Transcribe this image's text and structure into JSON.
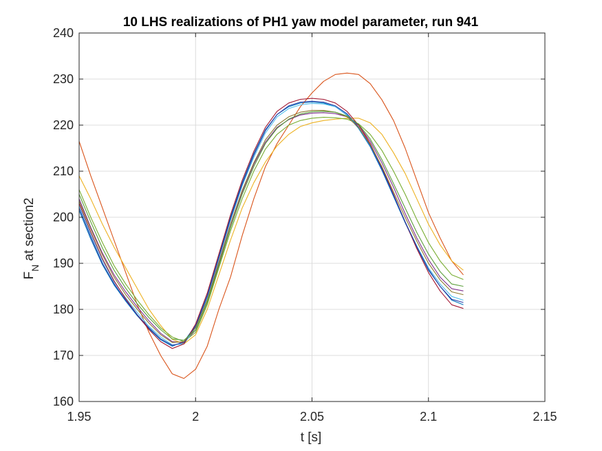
{
  "chart_data": {
    "type": "line",
    "title": "10 LHS realizations of PH1 yaw model parameter, run 941",
    "xlabel": "t [s]",
    "ylabel_main": "F",
    "ylabel_sub": "N",
    "ylabel_rest": " at section2",
    "xlim": [
      1.95,
      2.15
    ],
    "ylim": [
      160,
      240
    ],
    "xticks": [
      1.95,
      2.0,
      2.05,
      2.1,
      2.15
    ],
    "xtick_labels": [
      "1.95",
      "2",
      "2.05",
      "2.1",
      "2.15"
    ],
    "yticks": [
      160,
      170,
      180,
      190,
      200,
      210,
      220,
      230,
      240
    ],
    "ytick_labels": [
      "160",
      "170",
      "180",
      "190",
      "200",
      "210",
      "220",
      "230",
      "240"
    ],
    "grid": true,
    "legend": "none",
    "x": [
      1.95,
      1.955,
      1.96,
      1.965,
      1.97,
      1.975,
      1.98,
      1.985,
      1.99,
      1.995,
      2.0,
      2.005,
      2.01,
      2.015,
      2.02,
      2.025,
      2.03,
      2.035,
      2.04,
      2.045,
      2.05,
      2.055,
      2.06,
      2.065,
      2.07,
      2.075,
      2.08,
      2.085,
      2.09,
      2.095,
      2.1,
      2.105,
      2.11,
      2.115
    ],
    "series": [
      {
        "color": "#0072bd",
        "values": [
          201.5,
          195.3,
          189.7,
          185.3,
          181.8,
          178.6,
          175.8,
          173.4,
          172.0,
          173.0,
          176.5,
          183.0,
          191.5,
          200.0,
          207.5,
          213.8,
          219.0,
          222.3,
          224.0,
          224.8,
          225.0,
          224.8,
          224.0,
          222.2,
          219.3,
          215.3,
          210.2,
          204.5,
          198.8,
          193.5,
          188.5,
          185.0,
          182.0,
          181.0
        ]
      },
      {
        "color": "#d95319",
        "values": [
          216.5,
          209.0,
          202.0,
          195.0,
          188.0,
          181.0,
          175.0,
          170.0,
          166.0,
          165.0,
          167.0,
          172.0,
          180.0,
          187.0,
          196.0,
          204.0,
          211.0,
          216.0,
          220.0,
          224.0,
          227.0,
          229.5,
          231.0,
          231.3,
          231.0,
          229.0,
          225.5,
          221.0,
          215.0,
          208.0,
          201.0,
          195.5,
          190.5,
          187.5
        ]
      },
      {
        "color": "#edb120",
        "values": [
          209.0,
          204.0,
          198.5,
          193.5,
          189.0,
          184.5,
          180.0,
          176.5,
          173.5,
          172.5,
          174.5,
          180.0,
          187.5,
          195.0,
          202.0,
          207.5,
          212.0,
          215.5,
          218.0,
          219.7,
          220.5,
          221.0,
          221.3,
          221.5,
          221.5,
          220.5,
          218.0,
          214.0,
          209.5,
          204.0,
          198.5,
          194.0,
          190.5,
          188.5
        ]
      },
      {
        "color": "#7e2f8e",
        "values": [
          204.0,
          197.8,
          192.2,
          187.5,
          183.8,
          180.5,
          177.5,
          174.8,
          173.0,
          172.8,
          175.5,
          181.5,
          190.0,
          198.3,
          205.5,
          211.5,
          216.3,
          219.5,
          221.2,
          222.2,
          222.6,
          222.7,
          222.5,
          221.8,
          220.0,
          216.5,
          211.8,
          206.5,
          200.8,
          195.5,
          190.8,
          187.0,
          184.5,
          184.0
        ]
      },
      {
        "color": "#77ac30",
        "values": [
          206.0,
          200.0,
          194.5,
          189.5,
          185.5,
          182.0,
          178.8,
          176.0,
          174.0,
          173.0,
          175.0,
          181.0,
          189.0,
          197.0,
          204.0,
          210.0,
          214.8,
          218.0,
          220.0,
          221.0,
          221.5,
          221.7,
          221.6,
          221.3,
          220.3,
          218.0,
          214.5,
          210.0,
          205.0,
          199.5,
          194.5,
          190.5,
          187.5,
          186.5
        ]
      },
      {
        "color": "#4dbeee",
        "values": [
          202.5,
          196.3,
          190.6,
          186.0,
          182.5,
          179.3,
          176.3,
          174.0,
          172.3,
          172.5,
          176.0,
          182.5,
          191.0,
          199.3,
          206.8,
          213.0,
          218.3,
          221.8,
          223.6,
          224.4,
          224.7,
          224.6,
          224.0,
          222.3,
          219.5,
          215.5,
          210.5,
          204.8,
          199.0,
          193.8,
          189.0,
          185.5,
          182.8,
          182.0
        ]
      },
      {
        "color": "#a2142f",
        "values": [
          203.0,
          196.8,
          191.0,
          186.2,
          182.3,
          178.8,
          175.6,
          173.0,
          171.5,
          172.5,
          176.8,
          183.5,
          192.0,
          200.5,
          208.0,
          214.3,
          219.5,
          223.0,
          224.8,
          225.6,
          225.8,
          225.6,
          224.8,
          223.0,
          220.0,
          216.0,
          210.8,
          205.0,
          199.0,
          193.2,
          188.0,
          184.0,
          181.0,
          180.2
        ]
      },
      {
        "color": "#2a3ea8",
        "values": [
          202.0,
          195.8,
          190.0,
          185.6,
          182.0,
          178.8,
          176.0,
          173.6,
          172.2,
          172.8,
          176.3,
          182.8,
          191.2,
          199.6,
          207.2,
          213.5,
          218.8,
          222.3,
          224.2,
          225.0,
          225.2,
          225.0,
          224.2,
          222.5,
          219.6,
          215.6,
          210.5,
          204.8,
          199.0,
          193.6,
          188.7,
          185.0,
          182.2,
          181.5
        ]
      },
      {
        "color": "#8c7a30",
        "values": [
          203.5,
          197.5,
          191.8,
          187.0,
          183.2,
          180.0,
          177.0,
          174.5,
          172.8,
          173.0,
          176.0,
          182.0,
          190.3,
          198.5,
          205.8,
          211.8,
          216.8,
          220.0,
          221.8,
          222.8,
          223.2,
          223.2,
          222.8,
          221.8,
          219.5,
          215.8,
          211.0,
          205.5,
          200.0,
          194.8,
          190.0,
          186.4,
          183.8,
          183.2
        ]
      },
      {
        "color": "#5a9e3a",
        "values": [
          205.0,
          199.0,
          193.3,
          188.5,
          184.6,
          181.2,
          178.2,
          175.6,
          173.6,
          173.3,
          175.5,
          181.5,
          189.5,
          197.7,
          205.0,
          211.0,
          216.0,
          219.3,
          221.3,
          222.4,
          222.9,
          223.0,
          222.8,
          222.0,
          220.2,
          217.0,
          212.5,
          207.3,
          202.0,
          196.7,
          192.0,
          188.2,
          185.5,
          185.0
        ]
      }
    ]
  }
}
